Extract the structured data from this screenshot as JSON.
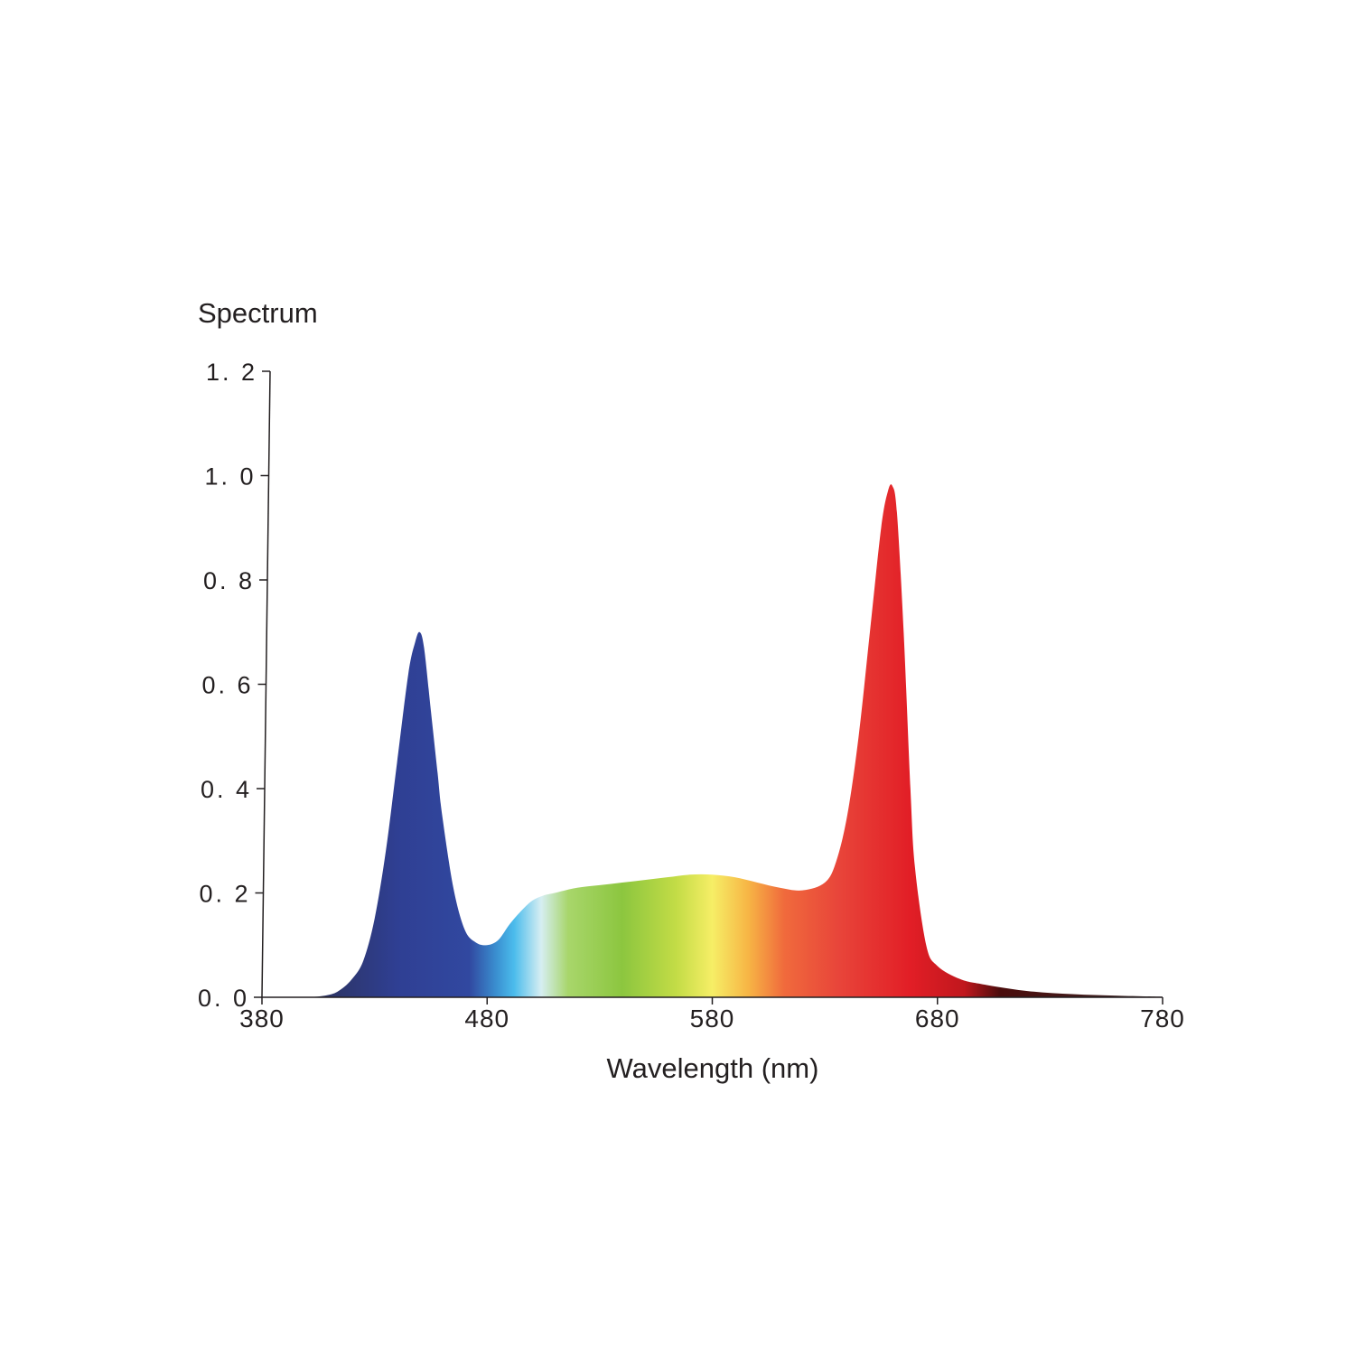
{
  "chart_data": {
    "type": "area",
    "title": "Spectrum",
    "xlabel": "Wavelength (nm)",
    "ylabel": "",
    "xlim": [
      380,
      780
    ],
    "ylim": [
      0,
      1.2
    ],
    "x_ticks": [
      380,
      480,
      580,
      680,
      780
    ],
    "x_tick_labels": [
      "380",
      "480",
      "580",
      "680",
      "780"
    ],
    "y_ticks": [
      0,
      0.2,
      0.4,
      0.6,
      0.8,
      1.0,
      1.2
    ],
    "y_tick_labels": [
      "0. 0",
      "0. 2",
      "0. 4",
      "0. 6",
      "0. 8",
      "1. 0",
      "1. 2"
    ],
    "grid": false,
    "fill": "wavelength-colored spectrum gradient",
    "colors": {
      "axis": "#231f20",
      "blue": "#2f3f93",
      "cyan": "#45b5e8",
      "green": "#8cc63f",
      "yellow": "#f3ea5d",
      "orange": "#f47a3a",
      "red": "#e21e26",
      "dark_red": "#3a0a0a"
    },
    "series": [
      {
        "x": [
          380,
          400,
          410,
          415,
          420,
          425,
          430,
          435,
          440,
          445,
          448,
          450,
          452,
          455,
          458,
          460,
          465,
          470,
          475,
          480,
          485,
          490,
          495,
          500,
          505,
          510,
          520,
          530,
          540,
          550,
          560,
          570,
          580,
          590,
          600,
          610,
          620,
          630,
          635,
          640,
          645,
          650,
          655,
          658,
          660,
          662,
          665,
          668,
          670,
          675,
          680,
          690,
          700,
          720,
          740,
          760,
          780
        ],
        "y": [
          0,
          0,
          0.005,
          0.015,
          0.035,
          0.07,
          0.15,
          0.28,
          0.45,
          0.62,
          0.68,
          0.7,
          0.67,
          0.55,
          0.43,
          0.35,
          0.21,
          0.13,
          0.105,
          0.1,
          0.11,
          0.14,
          0.165,
          0.185,
          0.195,
          0.2,
          0.21,
          0.215,
          0.22,
          0.225,
          0.23,
          0.235,
          0.235,
          0.23,
          0.22,
          0.21,
          0.205,
          0.22,
          0.26,
          0.35,
          0.5,
          0.7,
          0.9,
          0.97,
          0.98,
          0.93,
          0.7,
          0.4,
          0.25,
          0.1,
          0.06,
          0.035,
          0.025,
          0.012,
          0.006,
          0.003,
          0.001
        ]
      }
    ]
  }
}
